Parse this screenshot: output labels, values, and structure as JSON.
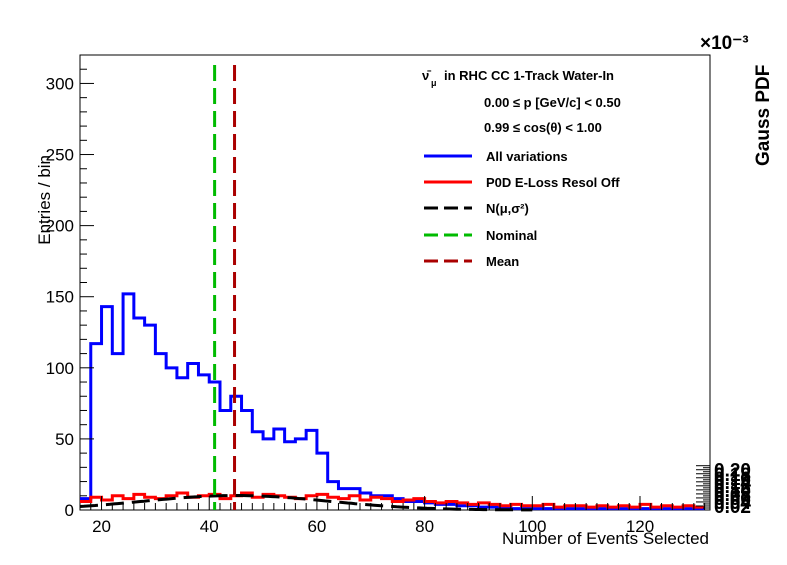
{
  "chart_data": {
    "type": "line",
    "title": "",
    "xlabel": "Number of Events Selected",
    "ylabel": "Entries / bin",
    "y2label": "Gauss PDF",
    "y2_exponent": "×10⁻³",
    "xlim": [
      16,
      133
    ],
    "ylim": [
      0,
      320
    ],
    "y2lim": [
      0,
      0.00226
    ],
    "x_ticks": [
      20,
      40,
      60,
      80,
      100,
      120
    ],
    "y_ticks": [
      0,
      50,
      100,
      150,
      200,
      250,
      300
    ],
    "y2_ticks": [
      0.02,
      0.04,
      0.06,
      0.08,
      0.1,
      0.12,
      0.14,
      0.16,
      0.18,
      0.2
    ],
    "y2_tick_labels": [
      "0.02",
      "0.04",
      "0.06",
      "0.08",
      "0.10",
      "0.12",
      "0.14",
      "0.16",
      "0.18",
      "0.20"
    ],
    "info_lines": [
      "in RHC CC 1-Track Water-In",
      "0.00  ≤ p [GeV/c] < 0.50",
      "0.99  ≤ cos(θ) < 1.00"
    ],
    "info_symbol": "ν̄",
    "info_symbol_sub": "μ",
    "legend_position": "top-right",
    "series": [
      {
        "name": "All variations",
        "color": "#0000ff",
        "style": "step",
        "bin_edges": [
          16,
          18,
          20,
          22,
          24,
          26,
          28,
          30,
          32,
          34,
          36,
          38,
          40,
          42,
          44,
          46,
          48,
          50,
          52,
          54,
          56,
          58,
          60,
          62,
          64,
          66,
          68,
          70,
          72,
          74,
          76,
          78,
          80,
          82,
          84,
          86,
          88,
          90,
          92,
          94,
          96,
          98,
          100,
          102,
          104,
          106,
          108,
          110,
          112,
          114,
          116,
          118,
          120,
          122,
          124,
          126,
          128,
          130,
          132
        ],
        "values": [
          8,
          117,
          143,
          110,
          152,
          135,
          130,
          110,
          100,
          93,
          103,
          95,
          90,
          70,
          80,
          70,
          55,
          50,
          57,
          48,
          50,
          56,
          40,
          20,
          15,
          15,
          12,
          10,
          10,
          8,
          6,
          6,
          5,
          4,
          4,
          3,
          3,
          2,
          2,
          2,
          1,
          1,
          1,
          1,
          1,
          1,
          1,
          1,
          1,
          1,
          1,
          1,
          1,
          1,
          1,
          1,
          1,
          1
        ]
      },
      {
        "name": "P0D E-Loss Resol Off",
        "color": "#ff0000",
        "style": "step",
        "bin_edges": [
          16,
          18,
          20,
          22,
          24,
          26,
          28,
          30,
          32,
          34,
          36,
          38,
          40,
          42,
          44,
          46,
          48,
          50,
          52,
          54,
          56,
          58,
          60,
          62,
          64,
          66,
          68,
          70,
          72,
          74,
          76,
          78,
          80,
          82,
          84,
          86,
          88,
          90,
          92,
          94,
          96,
          98,
          100,
          102,
          104,
          106,
          108,
          110,
          112,
          114,
          116,
          118,
          120,
          122,
          124,
          126,
          128,
          130,
          132
        ],
        "values": [
          6,
          9,
          7,
          10,
          8,
          11,
          9,
          8,
          10,
          12,
          9,
          10,
          11,
          8,
          10,
          12,
          9,
          11,
          10,
          9,
          8,
          10,
          11,
          9,
          8,
          10,
          7,
          9,
          8,
          6,
          7,
          8,
          6,
          5,
          6,
          5,
          4,
          5,
          4,
          3,
          4,
          3,
          3,
          4,
          2,
          3,
          3,
          2,
          3,
          2,
          3,
          2,
          4,
          2,
          3,
          2,
          3,
          2
        ]
      },
      {
        "name": "N(μ,σ²)",
        "color": "#000000",
        "style": "dashed",
        "mu": 45,
        "sigma": 17.2,
        "peak": 7.2e-05,
        "x_range": [
          16,
          100
        ]
      },
      {
        "name": "Nominal",
        "color": "#00bb00",
        "style": "dashed-vertical",
        "x": 41
      },
      {
        "name": "Mean",
        "color": "#aa0000",
        "style": "dashed-vertical",
        "x": 44.7
      }
    ]
  }
}
